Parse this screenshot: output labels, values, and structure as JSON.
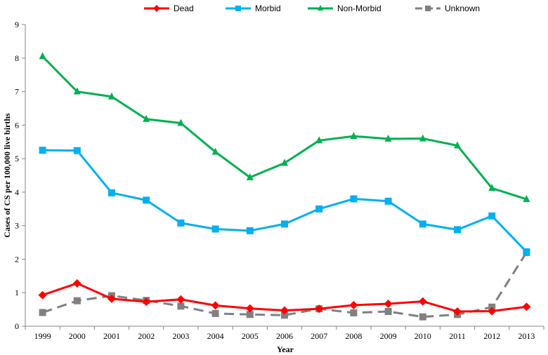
{
  "chart_data": {
    "type": "line",
    "title": "",
    "xlabel": "Year",
    "ylabel": "Cases of CS per 100,000 live births",
    "ylim": [
      0,
      9
    ],
    "yticks": [
      0,
      1,
      2,
      3,
      4,
      5,
      6,
      7,
      8,
      9
    ],
    "grid": false,
    "legend_position": "top",
    "categories": [
      "1999",
      "2000",
      "2001",
      "2002",
      "2003",
      "2004",
      "2005",
      "2006",
      "2007",
      "2008",
      "2009",
      "2010",
      "2011",
      "2012",
      "2013"
    ],
    "series": [
      {
        "name": "Dead",
        "color": "#FF0000",
        "marker": "diamond",
        "dash": "solid",
        "values": [
          0.93,
          1.28,
          0.82,
          0.73,
          0.8,
          0.62,
          0.53,
          0.47,
          0.52,
          0.63,
          0.67,
          0.74,
          0.44,
          0.45,
          0.58
        ]
      },
      {
        "name": "Morbid",
        "color": "#00B0F0",
        "marker": "square",
        "dash": "solid",
        "values": [
          5.25,
          5.24,
          3.98,
          3.76,
          3.08,
          2.9,
          2.85,
          3.05,
          3.5,
          3.8,
          3.73,
          3.05,
          2.88,
          3.29,
          2.22
        ]
      },
      {
        "name": "Non-Morbid",
        "color": "#00B050",
        "marker": "triangle",
        "dash": "solid",
        "values": [
          8.05,
          7.0,
          6.85,
          6.18,
          6.06,
          5.2,
          4.44,
          4.87,
          5.54,
          5.67,
          5.59,
          5.6,
          5.39,
          4.12,
          3.79
        ]
      },
      {
        "name": "Unknown",
        "color": "#808080",
        "marker": "square",
        "dash": "dashed",
        "values": [
          0.41,
          0.76,
          0.91,
          0.77,
          0.6,
          0.38,
          0.35,
          0.33,
          0.52,
          0.4,
          0.44,
          0.28,
          0.35,
          0.57,
          2.2
        ]
      }
    ]
  }
}
